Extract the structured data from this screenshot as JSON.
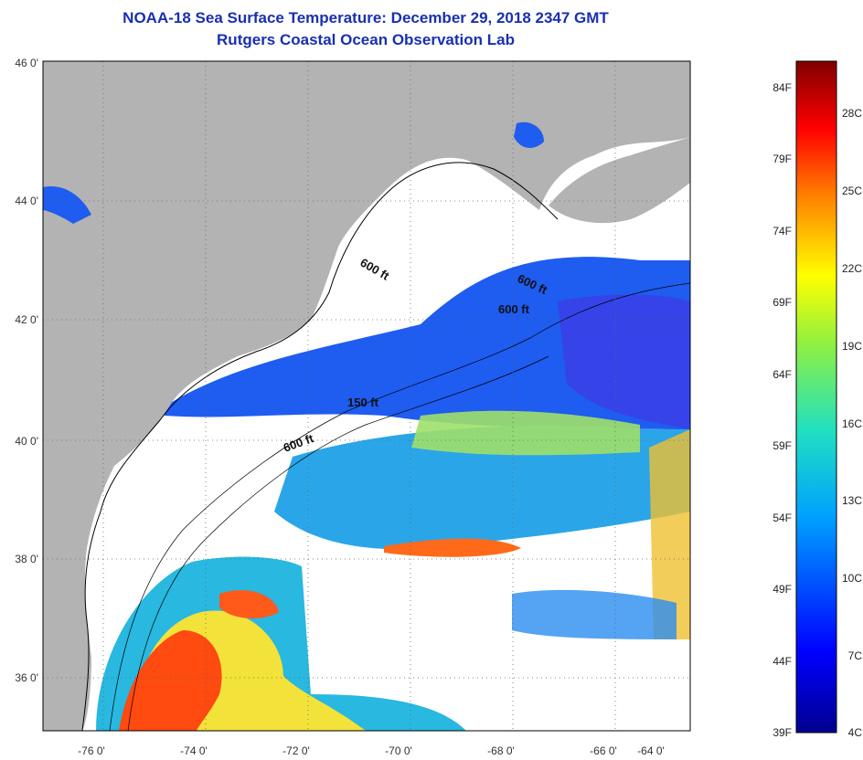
{
  "header": {
    "title": "NOAA-18 Sea Surface Temperature:  December 29, 2018 2347 GMT",
    "subtitle": "Rutgers Coastal Ocean Observation Lab"
  },
  "axes": {
    "lon_labels": [
      "-76 0'",
      "-74 0'",
      "-72 0'",
      "-70 0'",
      "-68 0'",
      "-66 0'",
      "-64 0'"
    ],
    "lat_labels": [
      "46 0'",
      "44 0'",
      "42 0'",
      "40 0'",
      "38 0'",
      "36 0'"
    ]
  },
  "isobaths": [
    "600 ft",
    "600 ft",
    "600 ft",
    "150 ft",
    "600 ft"
  ],
  "colorbar": {
    "f_labels": [
      "84F",
      "79F",
      "74F",
      "69F",
      "64F",
      "59F",
      "54F",
      "49F",
      "44F",
      "39F"
    ],
    "c_labels": [
      "28C",
      "25C",
      "22C",
      "19C",
      "16C",
      "13C",
      "10C",
      "7C",
      "4C"
    ]
  },
  "colors": {
    "land": "#b3b3b3",
    "cloud": "#ffffff",
    "title": "#1a2fb0"
  }
}
